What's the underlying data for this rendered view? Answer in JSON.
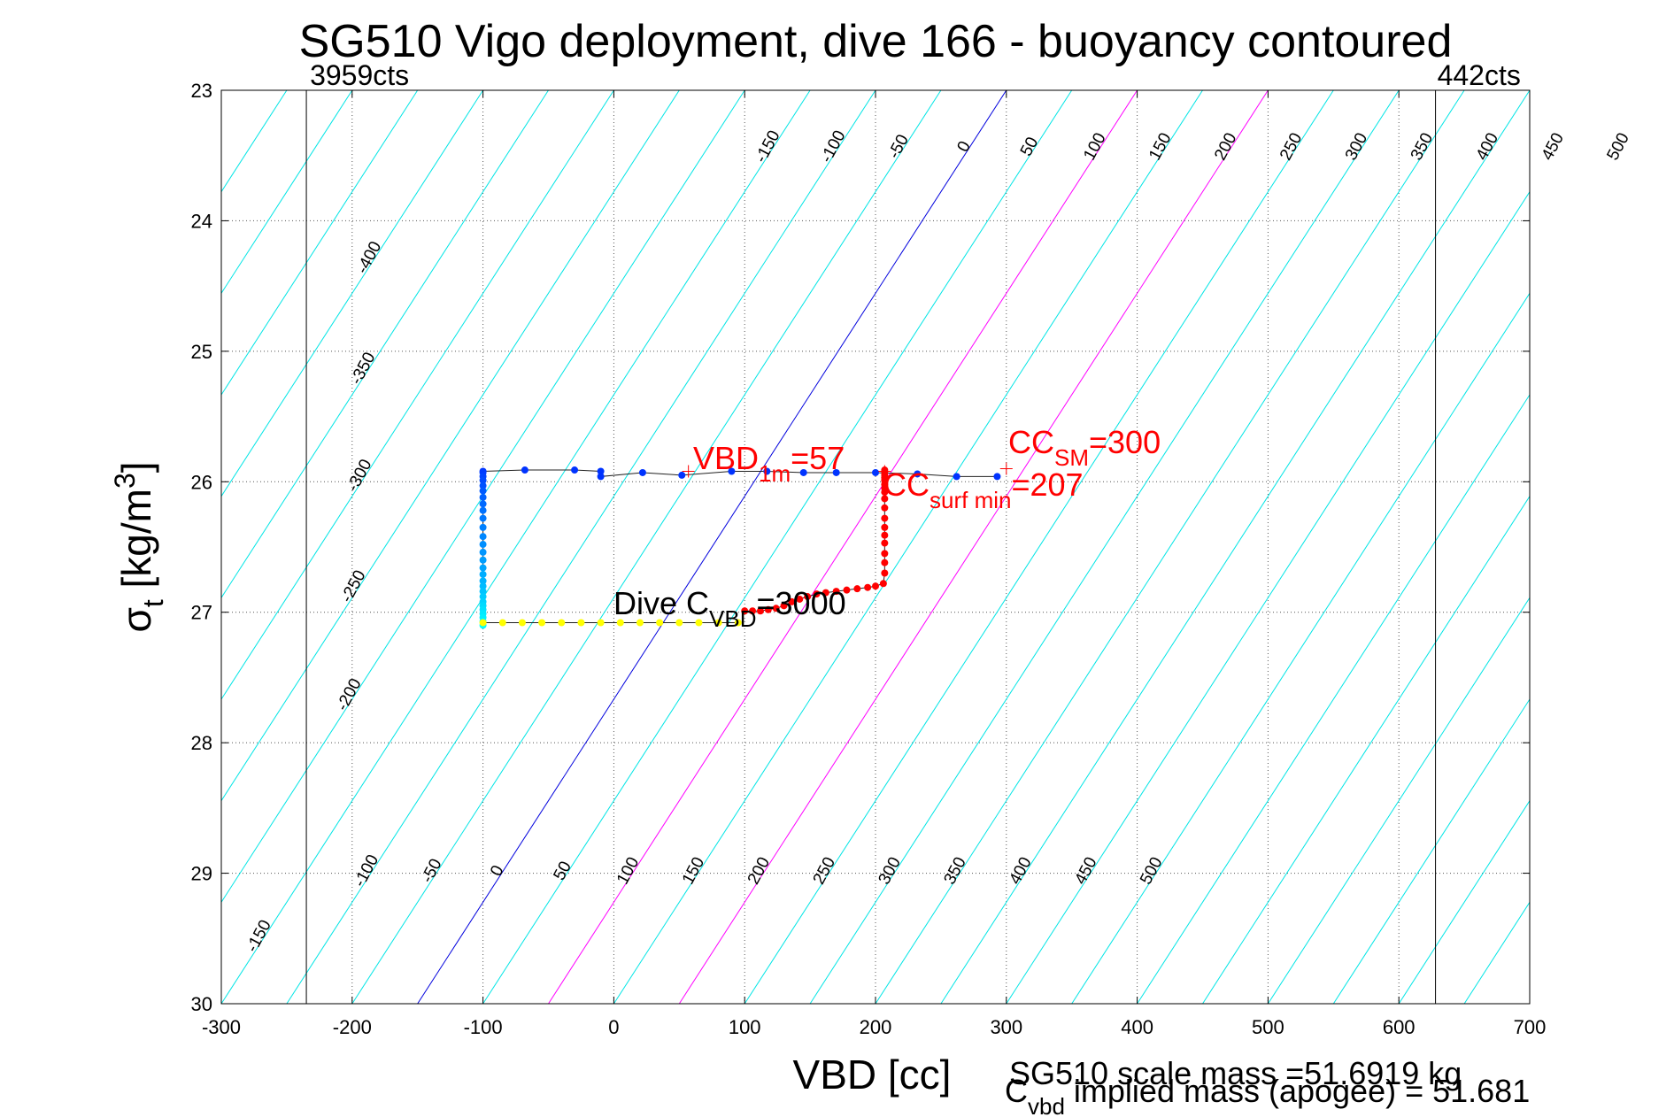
{
  "chart_data": {
    "type": "scatter",
    "title": "SG510 Vigo deployment, dive 166 - buoyancy contoured",
    "xlabel": "VBD [cc]",
    "ylabel_main": "σ",
    "ylabel_sub": "t",
    "ylabel_unit": " [kg/m",
    "ylabel_sup": "3",
    "ylabel_close": "]",
    "xlim": [
      -300,
      700
    ],
    "ylim": [
      23,
      30
    ],
    "y_reversed": true,
    "grid": true,
    "xticks": [
      "-300",
      "-200",
      "-100",
      "0",
      "100",
      "200",
      "300",
      "400",
      "500",
      "600",
      "700"
    ],
    "yticks": [
      "23",
      "24",
      "25",
      "26",
      "27",
      "28",
      "29",
      "30"
    ],
    "count_lines": [
      {
        "x": -235,
        "label": "3959cts"
      },
      {
        "x": 628,
        "label": "442cts"
      }
    ],
    "contour_labels_top": [
      "-150",
      "-100",
      "-50",
      "0",
      "50",
      "100",
      "150",
      "200",
      "250",
      "300",
      "350",
      "400",
      "450",
      "500"
    ],
    "contour_labels_left": [
      "-400",
      "-350",
      "-300",
      "-250",
      "-200",
      "-150"
    ],
    "contour_labels_bottom": [
      "-100",
      "-50",
      "0",
      "50",
      "100",
      "150",
      "200",
      "250",
      "300",
      "350",
      "400",
      "450",
      "500"
    ],
    "contour_colors": {
      "default": "#00e5e5",
      "zero": "#0000dd",
      "highlight": "#ff00ff"
    },
    "highlight_contours": [
      "100",
      "200"
    ],
    "ascent_segment": {
      "color": "#0033ff",
      "x": [
        -100,
        -68,
        -30,
        -10,
        -10,
        22,
        52,
        90,
        117,
        145,
        170,
        200,
        232,
        262,
        293
      ],
      "y": [
        25.92,
        25.91,
        25.91,
        25.92,
        25.96,
        25.93,
        25.95,
        25.92,
        25.92,
        25.93,
        25.93,
        25.93,
        25.94,
        25.96,
        25.96
      ]
    },
    "descent_segment": {
      "x": [
        -100,
        -100,
        -100,
        -100,
        -100,
        -100,
        -100,
        -100,
        -100,
        -100,
        -100,
        -100,
        -100,
        -100,
        -100,
        -100,
        -100,
        -100,
        -100,
        -100,
        -100,
        -100,
        -100,
        -100,
        -100,
        -100,
        -100
      ],
      "y": [
        25.93,
        25.96,
        25.99,
        26.03,
        26.07,
        26.12,
        26.17,
        26.22,
        26.28,
        26.35,
        26.42,
        26.48,
        26.54,
        26.6,
        26.66,
        26.71,
        26.76,
        26.8,
        26.84,
        26.88,
        26.92,
        26.95,
        26.98,
        27.01,
        27.04,
        27.07,
        27.1
      ]
    },
    "bottom_segment": {
      "color": "#ffff00",
      "x": [
        -100,
        -85,
        -70,
        -55,
        -40,
        -25,
        -10,
        5,
        20,
        35,
        50,
        65,
        80,
        95
      ],
      "y": [
        27.08,
        27.08,
        27.08,
        27.08,
        27.08,
        27.08,
        27.08,
        27.08,
        27.08,
        27.08,
        27.08,
        27.08,
        27.08,
        27.08
      ]
    },
    "pump_segment": {
      "color": "#ff0000",
      "x": [
        100,
        106,
        112,
        118,
        124,
        130,
        136,
        142,
        148,
        155,
        162,
        170,
        178,
        186,
        194,
        200,
        206,
        207,
        207,
        207,
        207,
        207,
        207,
        207,
        207,
        207,
        207,
        207,
        207,
        207,
        207,
        207,
        207,
        207
      ],
      "y": [
        26.99,
        26.99,
        26.99,
        26.98,
        26.97,
        26.95,
        26.92,
        26.9,
        26.88,
        26.86,
        26.85,
        26.84,
        26.83,
        26.82,
        26.81,
        26.8,
        26.78,
        26.7,
        26.62,
        26.55,
        26.47,
        26.41,
        26.35,
        26.28,
        26.2,
        26.13,
        26.08,
        26.05,
        26.02,
        25.99,
        25.97,
        25.95,
        25.93,
        25.91
      ]
    },
    "annotations": {
      "vbd_main": "VBD",
      "vbd_sub": "1m",
      "vbd_val": "=57",
      "vbd_point": [
        57,
        25.92
      ],
      "cc_sm_main": "CC",
      "cc_sm_sub": "SM",
      "cc_sm_val": "=300",
      "cc_sm_point": [
        300,
        25.9
      ],
      "cc_surf_main": "CC",
      "cc_surf_sub": "surf min",
      "cc_surf_val": "=207",
      "cc_surf_point": [
        207,
        25.92
      ],
      "dive_main": "Dive C",
      "dive_sub": "VBD",
      "dive_val": "=3000"
    },
    "footer": {
      "scale_mass": "SG510 scale mass =51.6919 kg",
      "cvbd_main": "C",
      "cvbd_sub": "vbd",
      "cvbd_rest": " implied mass (apogee) = 51.681"
    }
  }
}
